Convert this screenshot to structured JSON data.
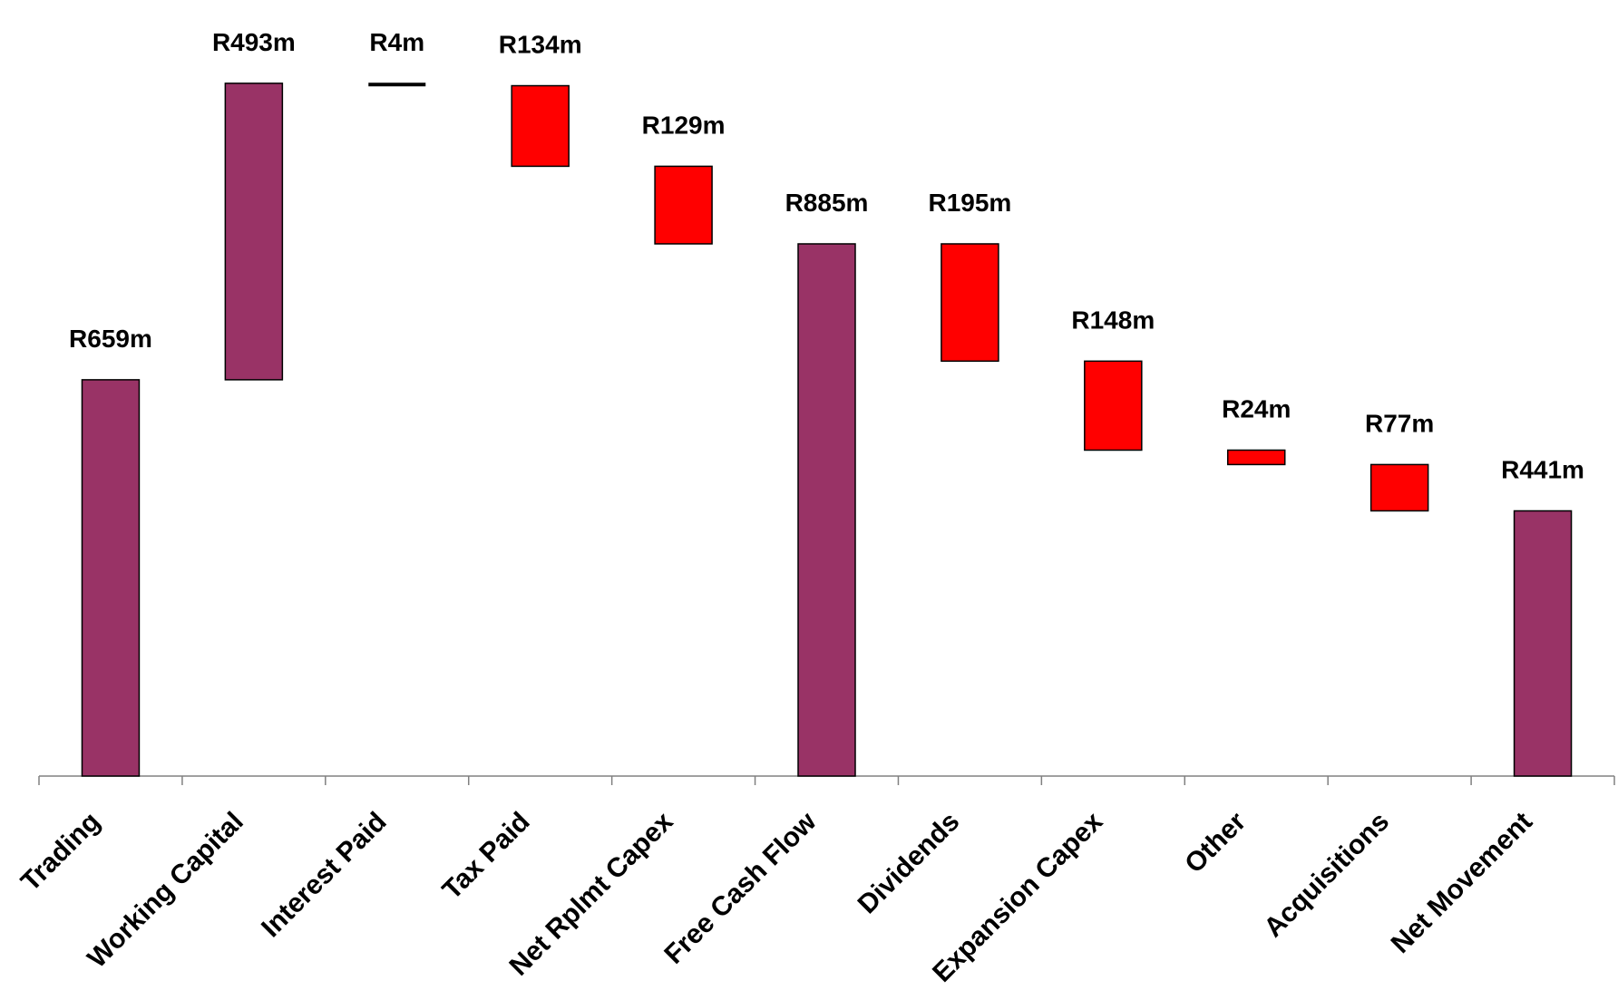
{
  "chart_data": {
    "type": "bar",
    "subtype": "waterfall",
    "title": "",
    "xlabel": "",
    "ylabel": "",
    "ylim": [
      0,
      1100
    ],
    "grid": false,
    "legend": "none",
    "categories": [
      "Trading",
      "Working Capital",
      "Interest Paid",
      "Tax Paid",
      "Net Rplmt Capex",
      "Free Cash Flow",
      "Dividends",
      "Expansion Capex",
      "Other",
      "Acquisitions",
      "Net Movement"
    ],
    "bars": [
      {
        "category": "Trading",
        "label": "R659m",
        "start": 0,
        "end": 659,
        "kind": "total"
      },
      {
        "category": "Working Capital",
        "label": "R493m",
        "start": 659,
        "end": 1152,
        "kind": "total"
      },
      {
        "category": "Interest Paid",
        "label": "R4m",
        "start": 1152,
        "end": 1148,
        "kind": "line"
      },
      {
        "category": "Tax Paid",
        "label": "R134m",
        "start": 1148,
        "end": 1014,
        "kind": "decrease"
      },
      {
        "category": "Net Rplmt Capex",
        "label": "R129m",
        "start": 1014,
        "end": 885,
        "kind": "decrease"
      },
      {
        "category": "Free Cash Flow",
        "label": "R885m",
        "start": 0,
        "end": 885,
        "kind": "total"
      },
      {
        "category": "Dividends",
        "label": "R195m",
        "start": 885,
        "end": 690,
        "kind": "decrease"
      },
      {
        "category": "Expansion Capex",
        "label": "R148m",
        "start": 690,
        "end": 542,
        "kind": "decrease"
      },
      {
        "category": "Other",
        "label": "R24m",
        "start": 542,
        "end": 518,
        "kind": "decrease"
      },
      {
        "category": "Acquisitions",
        "label": "R77m",
        "start": 518,
        "end": 441,
        "kind": "decrease"
      },
      {
        "category": "Net Movement",
        "label": "R441m",
        "start": 0,
        "end": 441,
        "kind": "total"
      }
    ],
    "colors": {
      "total": "#993366",
      "decrease": "#ff0000",
      "outline": "#000000",
      "axis": "#808080"
    }
  }
}
